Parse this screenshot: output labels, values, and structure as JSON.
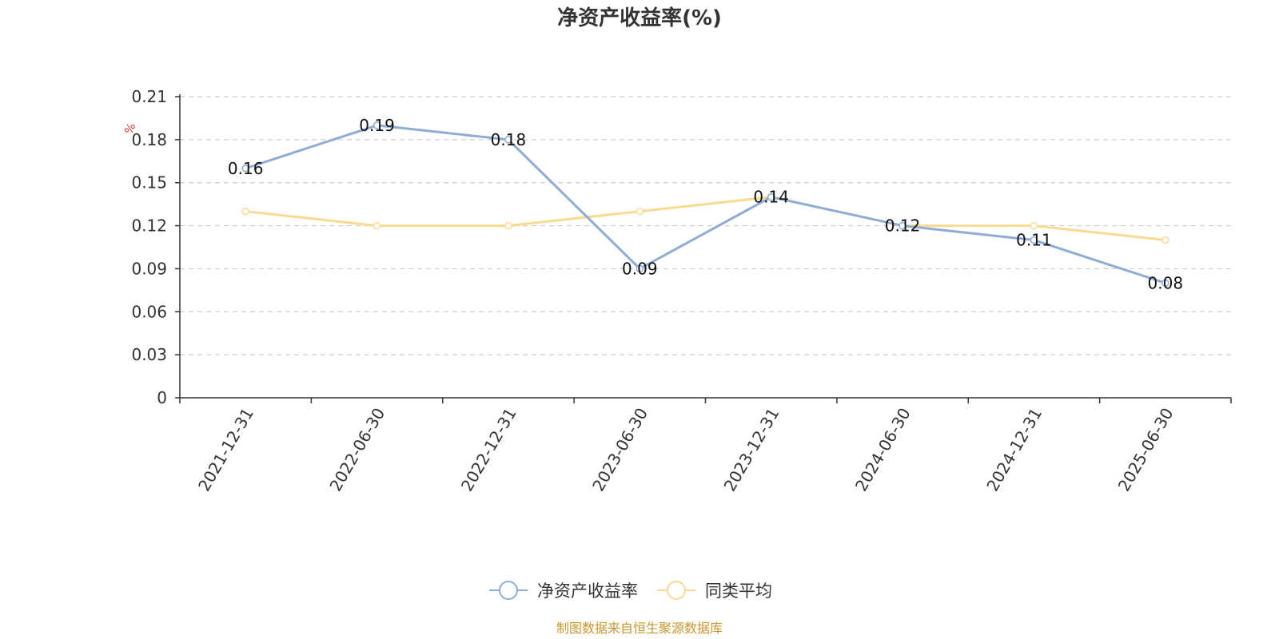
{
  "chart_data": {
    "type": "line",
    "title": "净资产收益率(%)",
    "ylabel": "%",
    "categories": [
      "2021-12-31",
      "2022-06-30",
      "2022-12-31",
      "2023-06-30",
      "2023-12-31",
      "2024-06-30",
      "2024-12-31",
      "2025-06-30"
    ],
    "series": [
      {
        "name": "净资产收益率",
        "values": [
          0.16,
          0.19,
          0.18,
          0.09,
          0.14,
          0.12,
          0.11,
          0.08
        ],
        "color": "#8eacd6",
        "show_labels": true
      },
      {
        "name": "同类平均",
        "values": [
          0.13,
          0.12,
          0.12,
          0.13,
          0.14,
          0.12,
          0.12,
          0.11
        ],
        "color": "#fad991",
        "show_labels": false
      }
    ],
    "ylim": [
      0,
      0.21
    ],
    "yticks": [
      "0",
      "0.03",
      "0.06",
      "0.09",
      "0.12",
      "0.15",
      "0.18",
      "0.21"
    ],
    "grid": true,
    "legend_position": "bottom-center"
  },
  "source_note": "制图数据来自恒生聚源数据库",
  "colors": {
    "unit": "#e03030",
    "source": "#c9962d",
    "axis": "#333333",
    "grid": "#cccccc"
  }
}
